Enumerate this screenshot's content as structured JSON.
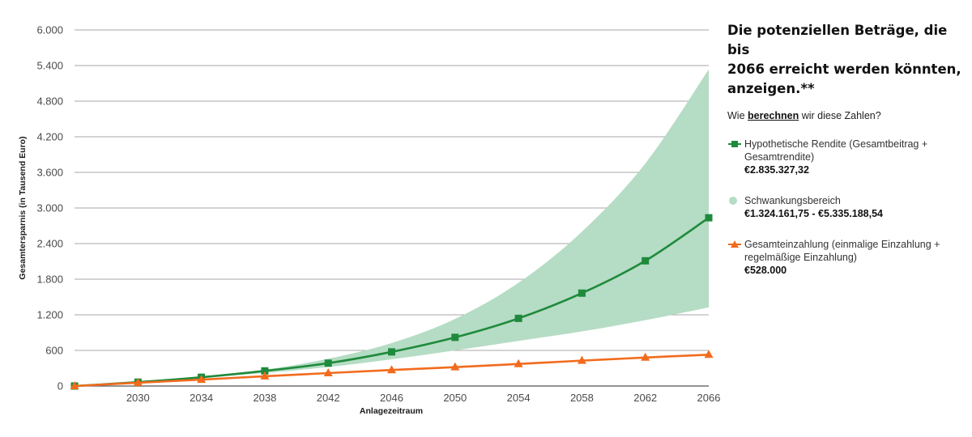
{
  "chart_data": {
    "type": "line",
    "xlabel": "Anlagezeitraum",
    "ylabel": "Gesamtersparnis (in Tausend Euro)",
    "xlim": [
      2026,
      2066
    ],
    "ylim": [
      0,
      6000
    ],
    "xticks": [
      2030,
      2034,
      2038,
      2042,
      2046,
      2050,
      2054,
      2058,
      2062,
      2066
    ],
    "xtick_labels": [
      "2030",
      "2034",
      "2038",
      "2042",
      "2046",
      "2050",
      "2054",
      "2058",
      "2062",
      "2066"
    ],
    "yticks": [
      0,
      600,
      1200,
      1800,
      2400,
      3000,
      3600,
      4200,
      4800,
      5400,
      6000
    ],
    "ytick_labels": [
      "0",
      "600",
      "1.200",
      "1.800",
      "2.400",
      "3.000",
      "3.600",
      "4.200",
      "4.800",
      "5.400",
      "6.000"
    ],
    "grid": true,
    "x": [
      2026,
      2030,
      2034,
      2038,
      2042,
      2046,
      2050,
      2054,
      2058,
      2062,
      2066
    ],
    "series": [
      {
        "name": "Hypothetische Rendite (Gesamtbeitrag + Gesamtrendite)",
        "type": "line",
        "marker": "square",
        "color": "#1e8a3c",
        "values": [
          0,
          65,
          148,
          255,
          385,
          575,
          820,
          1140,
          1565,
          2110,
          2835
        ]
      },
      {
        "name": "Gesamteinzahlung (einmalige Einzahlung + regelmäßige Einzahlung)",
        "type": "line",
        "marker": "triangle",
        "color": "#f26b1d",
        "values": [
          0,
          55,
          108,
          165,
          218,
          270,
          318,
          372,
          428,
          480,
          528
        ]
      }
    ],
    "band": {
      "name": "Schwankungsbereich",
      "color": "#b5dcc4",
      "upper": [
        0,
        66,
        155,
        275,
        460,
        725,
        1130,
        1740,
        2600,
        3750,
        5335
      ],
      "lower": [
        0,
        64,
        140,
        220,
        320,
        450,
        600,
        760,
        920,
        1110,
        1324
      ]
    }
  },
  "panel": {
    "title_lines": [
      "Die potenziellen Beträge, die bis",
      "2066 erreicht werden könnten,",
      "anzeigen.**"
    ],
    "question_prefix": "Wie",
    "question_link": "berechnen",
    "question_suffix": "wir diese Zahlen?",
    "legend": [
      {
        "label_lines": [
          "Hypothetische Rendite (Gesamtbeitrag +",
          "Gesamtrendite)"
        ],
        "value": "€2.835.327,32",
        "symbol": "line-square",
        "color": "#1e8a3c"
      },
      {
        "label_lines": [
          "Schwankungsbereich"
        ],
        "value": "€1.324.161,75 - €5.335.188,54",
        "symbol": "circle",
        "color": "#b5dcc4"
      },
      {
        "label_lines": [
          "Gesamteinzahlung (einmalige Einzahlung +",
          "regelmäßige Einzahlung)"
        ],
        "value": "€528.000",
        "symbol": "line-triangle",
        "color": "#f26b1d"
      }
    ]
  }
}
